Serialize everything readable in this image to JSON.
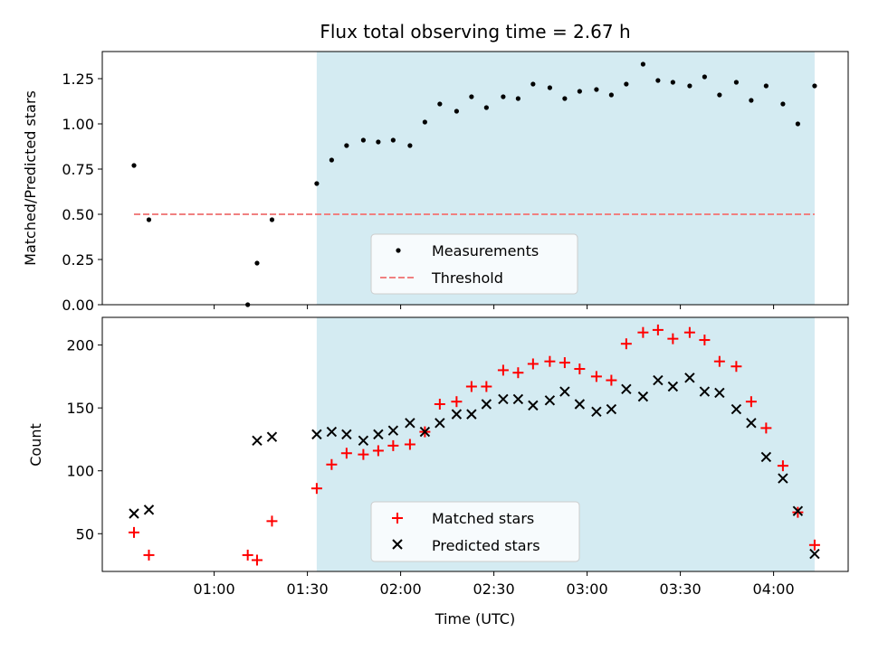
{
  "chart_data": {
    "type": "scatter",
    "title": "Flux total observing time = 2.67 h",
    "xlabel": "Time (UTC)",
    "x_ticks": [
      "01:00",
      "01:30",
      "02:00",
      "02:30",
      "03:00",
      "03:30",
      "04:00"
    ],
    "x_tick_hours": [
      1.0,
      1.5,
      2.0,
      2.5,
      3.0,
      3.5,
      4.0
    ],
    "xlim_hours": [
      0.4,
      4.4
    ],
    "observing_window_hours": [
      1.55,
      4.22
    ],
    "top": {
      "ylabel": "Matched/Predicted stars",
      "ylim": [
        0,
        1.4
      ],
      "y_ticks": [
        "0.00",
        "0.25",
        "0.50",
        "0.75",
        "1.00",
        "1.25"
      ],
      "y_tick_values": [
        0,
        0.25,
        0.5,
        0.75,
        1.0,
        1.25
      ],
      "threshold": {
        "value": 0.5,
        "x_range_hours": [
          0.57,
          4.22
        ]
      },
      "legend": [
        "Measurements",
        "Threshold"
      ],
      "series": [
        {
          "name": "Measurements",
          "x": [
            0.57,
            0.65,
            1.18,
            1.23,
            1.31,
            1.55,
            1.63,
            1.71,
            1.8,
            1.88,
            1.96,
            2.05,
            2.13,
            2.21,
            2.3,
            2.38,
            2.46,
            2.55,
            2.63,
            2.71,
            2.8,
            2.88,
            2.96,
            3.05,
            3.13,
            3.21,
            3.3,
            3.38,
            3.46,
            3.55,
            3.63,
            3.71,
            3.8,
            3.88,
            3.96,
            4.05,
            4.13,
            4.22
          ],
          "y": [
            0.77,
            0.47,
            0.0,
            0.23,
            0.47,
            0.67,
            0.8,
            0.88,
            0.91,
            0.9,
            0.91,
            0.88,
            1.01,
            1.11,
            1.07,
            1.15,
            1.09,
            1.15,
            1.14,
            1.22,
            1.2,
            1.14,
            1.18,
            1.19,
            1.16,
            1.22,
            1.33,
            1.24,
            1.23,
            1.21,
            1.26,
            1.16,
            1.23,
            1.13,
            1.21,
            1.11,
            1.0,
            1.21
          ]
        }
      ]
    },
    "bottom": {
      "ylabel": "Count",
      "ylim": [
        20,
        222
      ],
      "y_ticks": [
        "50",
        "100",
        "150",
        "200"
      ],
      "y_tick_values": [
        50,
        100,
        150,
        200
      ],
      "legend": [
        "Matched stars",
        "Predicted stars"
      ],
      "series": [
        {
          "name": "Matched stars",
          "x": [
            0.57,
            0.65,
            1.18,
            1.23,
            1.31,
            1.55,
            1.63,
            1.71,
            1.8,
            1.88,
            1.96,
            2.05,
            2.13,
            2.21,
            2.3,
            2.38,
            2.46,
            2.55,
            2.63,
            2.71,
            2.8,
            2.88,
            2.96,
            3.05,
            3.13,
            3.21,
            3.3,
            3.38,
            3.46,
            3.55,
            3.63,
            3.71,
            3.8,
            3.88,
            3.96,
            4.05,
            4.13,
            4.22
          ],
          "y": [
            51,
            33,
            33,
            29,
            60,
            86,
            105,
            114,
            113,
            116,
            120,
            121,
            131,
            153,
            155,
            167,
            167,
            180,
            178,
            185,
            187,
            186,
            181,
            175,
            172,
            201,
            210,
            212,
            205,
            210,
            204,
            187,
            183,
            155,
            134,
            104,
            67,
            41
          ]
        },
        {
          "name": "Predicted stars",
          "x": [
            0.57,
            0.65,
            1.23,
            1.31,
            1.55,
            1.63,
            1.71,
            1.8,
            1.88,
            1.96,
            2.05,
            2.13,
            2.21,
            2.3,
            2.38,
            2.46,
            2.55,
            2.63,
            2.71,
            2.8,
            2.88,
            2.96,
            3.05,
            3.13,
            3.21,
            3.3,
            3.38,
            3.46,
            3.55,
            3.63,
            3.71,
            3.8,
            3.88,
            3.96,
            4.05,
            4.13,
            4.22
          ],
          "y": [
            66,
            69,
            124,
            127,
            129,
            131,
            129,
            124,
            129,
            132,
            138,
            131,
            138,
            145,
            145,
            153,
            157,
            157,
            152,
            156,
            163,
            153,
            147,
            149,
            165,
            159,
            172,
            167,
            174,
            163,
            162,
            149,
            138,
            111,
            94,
            68,
            34
          ]
        }
      ]
    },
    "colors": {
      "window": "#d4ebf2",
      "threshold": "#f08080",
      "matched": "#ff0000",
      "predicted": "#000000",
      "measurements": "#000000"
    }
  }
}
